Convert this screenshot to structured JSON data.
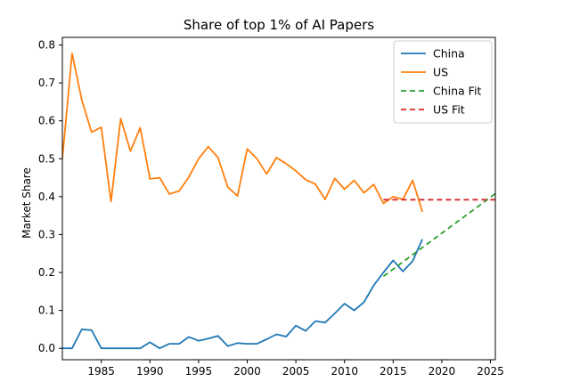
{
  "chart_data": {
    "type": "line",
    "title": "Share of top 1% of AI Papers",
    "xlabel": "",
    "ylabel": "Market Share",
    "xlim": [
      1981,
      2025.5
    ],
    "ylim": [
      -0.03,
      0.82
    ],
    "xticks": [
      1985,
      1990,
      1995,
      2000,
      2005,
      2010,
      2015,
      2020,
      2025
    ],
    "yticks": [
      0.0,
      0.1,
      0.2,
      0.3,
      0.4,
      0.5,
      0.6,
      0.7,
      0.8
    ],
    "ytick_labels": [
      "0.0",
      "0.1",
      "0.2",
      "0.3",
      "0.4",
      "0.5",
      "0.6",
      "0.7",
      "0.8"
    ],
    "grid": false,
    "legend_position": "top-right",
    "series": [
      {
        "name": "China",
        "color": "#1f77b4",
        "style": "solid",
        "x": [
          1981,
          1982,
          1983,
          1984,
          1985,
          1986,
          1987,
          1988,
          1989,
          1990,
          1991,
          1992,
          1993,
          1994,
          1995,
          1996,
          1997,
          1998,
          1999,
          2000,
          2001,
          2002,
          2003,
          2004,
          2005,
          2006,
          2007,
          2008,
          2009,
          2010,
          2011,
          2012,
          2013,
          2014,
          2015,
          2016,
          2017,
          2018
        ],
        "y": [
          0.0,
          0.0,
          0.05,
          0.048,
          0.0,
          0.0,
          0.0,
          0.0,
          0.0,
          0.016,
          0.0,
          0.012,
          0.012,
          0.03,
          0.02,
          0.026,
          0.033,
          0.006,
          0.014,
          0.012,
          0.012,
          0.024,
          0.037,
          0.031,
          0.06,
          0.046,
          0.072,
          0.068,
          0.092,
          0.118,
          0.1,
          0.122,
          0.166,
          0.2,
          0.232,
          0.203,
          0.23,
          0.288
        ]
      },
      {
        "name": "US",
        "color": "#ff7f0e",
        "style": "solid",
        "x": [
          1981,
          1982,
          1983,
          1984,
          1985,
          1986,
          1987,
          1988,
          1989,
          1990,
          1991,
          1992,
          1993,
          1994,
          1995,
          1996,
          1997,
          1998,
          1999,
          2000,
          2001,
          2002,
          2003,
          2004,
          2005,
          2006,
          2007,
          2008,
          2009,
          2010,
          2011,
          2012,
          2013,
          2014,
          2015,
          2016,
          2017,
          2018
        ],
        "y": [
          0.5,
          0.778,
          0.655,
          0.57,
          0.583,
          0.387,
          0.606,
          0.52,
          0.582,
          0.447,
          0.45,
          0.407,
          0.415,
          0.452,
          0.5,
          0.532,
          0.503,
          0.425,
          0.402,
          0.526,
          0.5,
          0.46,
          0.503,
          0.487,
          0.468,
          0.445,
          0.433,
          0.393,
          0.448,
          0.42,
          0.443,
          0.41,
          0.432,
          0.382,
          0.4,
          0.393,
          0.443,
          0.36
        ]
      },
      {
        "name": "China Fit",
        "color": "#2ca02c",
        "style": "dashed",
        "x": [
          2014,
          2025.5
        ],
        "y": [
          0.19,
          0.408
        ]
      },
      {
        "name": "US Fit",
        "color": "#d62728",
        "style": "dashed",
        "x": [
          2014,
          2025.5
        ],
        "y": [
          0.392,
          0.392
        ]
      }
    ]
  }
}
